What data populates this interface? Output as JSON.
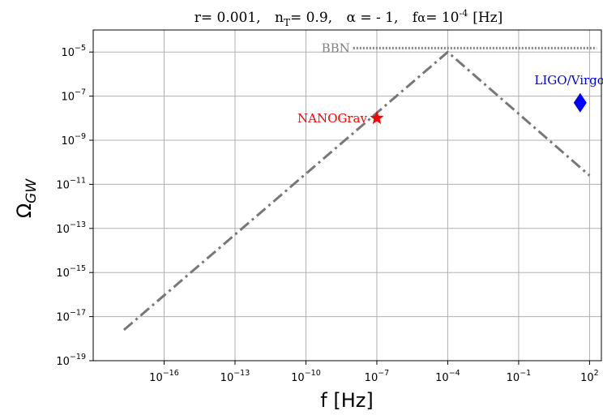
{
  "chart_data": {
    "type": "line",
    "title": {
      "r_label": "r= 0.001,",
      "nT_base": "n",
      "nT_sub": "T",
      "nT_value": "= 0.9,",
      "alpha_label": "α = - 1,",
      "f_label": "f",
      "f_alpha": "α",
      "f_value_base": "= 10",
      "f_value_exp": "-4",
      "f_unit": "[Hz]"
    },
    "xlabel": "f [Hz]",
    "ylabel": "Ω",
    "ylabel_sub": "GW",
    "x_scale": "log",
    "y_scale": "log",
    "xlim_log10": [
      -19,
      2.5
    ],
    "ylim_log10": [
      -19,
      -4
    ],
    "grid": true,
    "x_ticks": [
      {
        "base": "10",
        "exp": "−16",
        "log": -16
      },
      {
        "base": "10",
        "exp": "−13",
        "log": -13
      },
      {
        "base": "10",
        "exp": "−10",
        "log": -10
      },
      {
        "base": "10",
        "exp": "−7",
        "log": -7
      },
      {
        "base": "10",
        "exp": "−4",
        "log": -4
      },
      {
        "base": "10",
        "exp": "−1",
        "log": -1
      },
      {
        "base": "10",
        "exp": "2",
        "log": 2
      }
    ],
    "y_ticks": [
      {
        "base": "10",
        "exp": "−5",
        "log": -5
      },
      {
        "base": "10",
        "exp": "−7",
        "log": -7
      },
      {
        "base": "10",
        "exp": "−9",
        "log": -9
      },
      {
        "base": "10",
        "exp": "−11",
        "log": -11
      },
      {
        "base": "10",
        "exp": "−13",
        "log": -13
      },
      {
        "base": "10",
        "exp": "−15",
        "log": -15
      },
      {
        "base": "10",
        "exp": "−17",
        "log": -17
      },
      {
        "base": "10",
        "exp": "−19",
        "log": -19
      }
    ],
    "series": [
      {
        "style": "dashdot",
        "color": "#777777",
        "x": [
          2e-18,
          0.0001,
          100
        ],
        "y": [
          2.5e-18,
          1e-05,
          2.5e-11
        ]
      }
    ],
    "bbn": {
      "label": "BBN",
      "y": 1.5e-05,
      "x_start": 1e-08,
      "x_end": 200,
      "color": "#808080"
    },
    "points": [
      {
        "label": "NANOGrav",
        "x": 1e-07,
        "y": 1e-08,
        "marker": "star",
        "color": "#ff0000"
      },
      {
        "label": "LIGO/Virgo",
        "x": 40,
        "y": 5e-08,
        "marker": "diamond",
        "color": "#0000ff"
      }
    ]
  }
}
